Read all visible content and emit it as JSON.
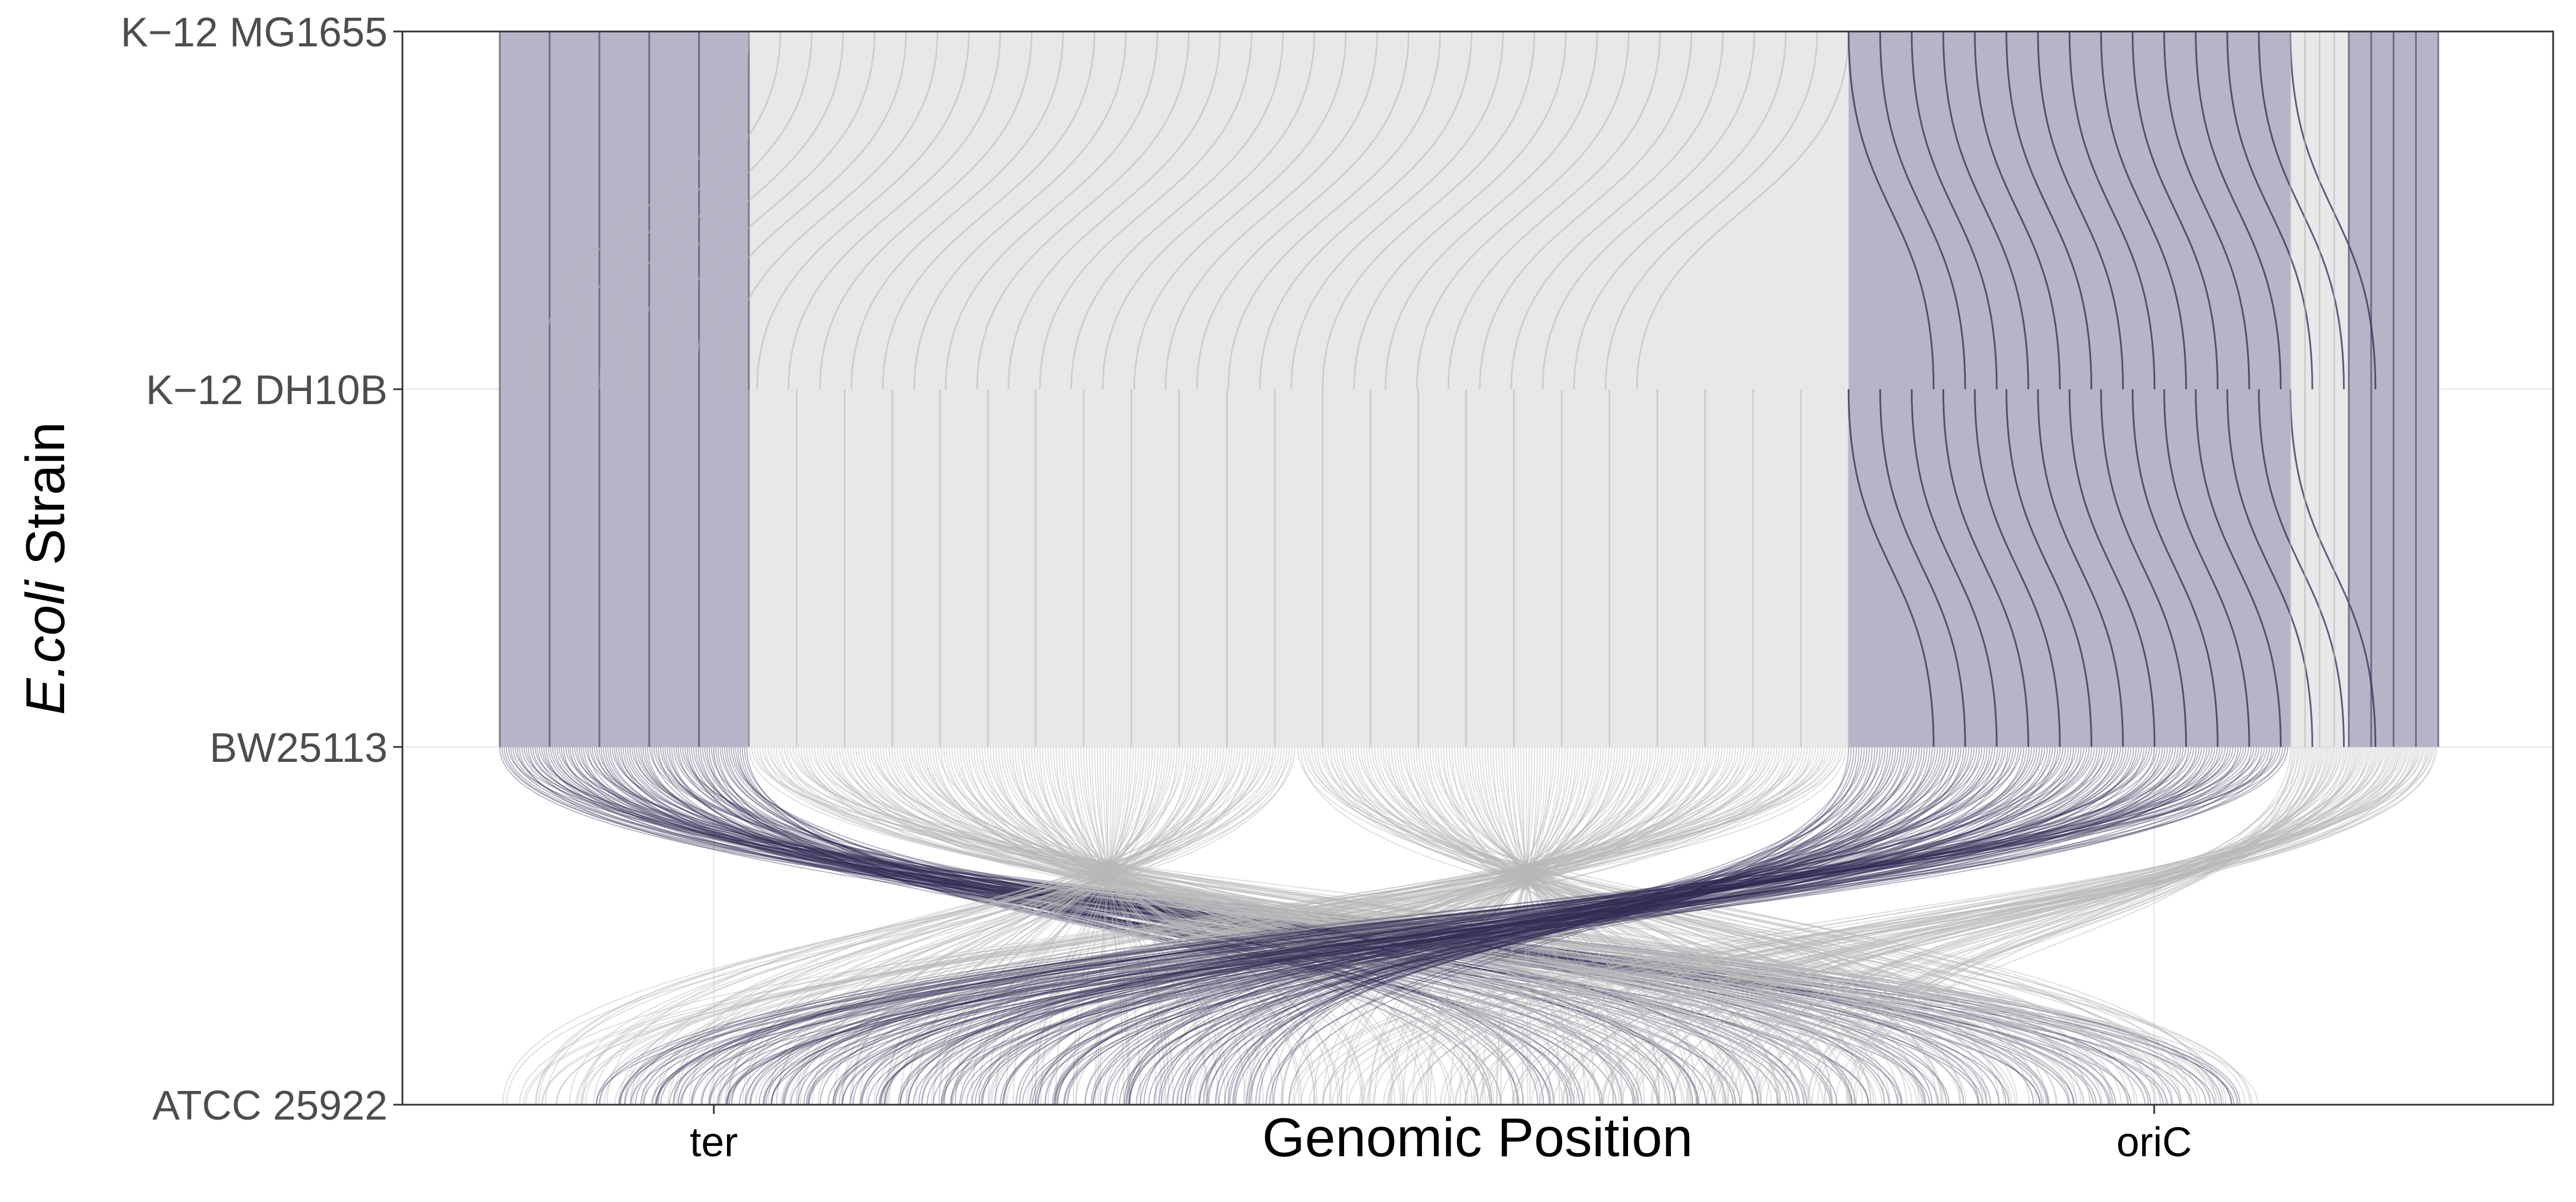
{
  "chart_data": {
    "type": "synteny",
    "title": "",
    "xlabel": "Genomic Position",
    "ylabel_italic": "E.coli",
    "ylabel_rest": " Strain",
    "strains": [
      "K−12 MG1655",
      "K−12 DH10B",
      "BW25113",
      "ATCC 25922"
    ],
    "x_ticks": [
      {
        "label": "ter",
        "value": 0.16
      },
      {
        "label": "oriC",
        "value": 0.9
      }
    ],
    "xlim": [
      0,
      1
    ],
    "grid": true,
    "colors": {
      "inverted": "#302b54",
      "inverted_fill": "#b6b4c6",
      "collinear": "#b8b8b8",
      "collinear_fill": "#e8e8e8",
      "frame": "#333333",
      "text": "#4d4d4d"
    },
    "blocks": [
      {
        "from": 0,
        "to": 1,
        "start": 0.05,
        "end": 0.178,
        "class": "inverted",
        "pattern": "vertical"
      },
      {
        "from": 0,
        "to": 1,
        "start": 0.178,
        "end": 0.743,
        "class": "collinear",
        "pattern": "swirl"
      },
      {
        "from": 0,
        "to": 1,
        "start": 0.743,
        "end": 0.97,
        "class": "inverted",
        "pattern": "swirl"
      },
      {
        "from": 0,
        "to": 1,
        "start": 0.97,
        "end": 1.0,
        "class": "collinear",
        "pattern": "vertical"
      },
      {
        "from": 0,
        "to": 1,
        "start": 1.0,
        "end": 1.046,
        "class": "inverted",
        "pattern": "vertical"
      },
      {
        "from": 1,
        "to": 2,
        "start": 0.05,
        "end": 0.178,
        "class": "inverted",
        "pattern": "vertical"
      },
      {
        "from": 1,
        "to": 2,
        "start": 0.178,
        "end": 0.743,
        "class": "collinear",
        "pattern": "vertical"
      },
      {
        "from": 1,
        "to": 2,
        "start": 0.743,
        "end": 0.97,
        "class": "inverted",
        "pattern": "swirl"
      },
      {
        "from": 1,
        "to": 2,
        "start": 0.97,
        "end": 1.0,
        "class": "collinear",
        "pattern": "vertical"
      },
      {
        "from": 1,
        "to": 2,
        "start": 1.0,
        "end": 1.046,
        "class": "inverted",
        "pattern": "vertical"
      },
      {
        "from": 2,
        "to": 3,
        "start": 0.05,
        "end": 0.178,
        "class": "inverted",
        "pattern": "cross",
        "target_start": 0.55,
        "target_end": 0.95
      },
      {
        "from": 2,
        "to": 3,
        "start": 0.178,
        "end": 0.46,
        "class": "collinear",
        "pattern": "cross",
        "target_start": 0.05,
        "target_end": 0.95
      },
      {
        "from": 2,
        "to": 3,
        "start": 0.46,
        "end": 0.743,
        "class": "collinear",
        "pattern": "cross",
        "target_start": 0.05,
        "target_end": 0.95
      },
      {
        "from": 2,
        "to": 3,
        "start": 0.743,
        "end": 0.97,
        "class": "inverted",
        "pattern": "cross",
        "target_start": 0.1,
        "target_end": 0.45
      },
      {
        "from": 2,
        "to": 3,
        "start": 0.97,
        "end": 1.046,
        "class": "collinear",
        "pattern": "cross",
        "target_start": 0.45,
        "target_end": 0.75
      }
    ]
  }
}
